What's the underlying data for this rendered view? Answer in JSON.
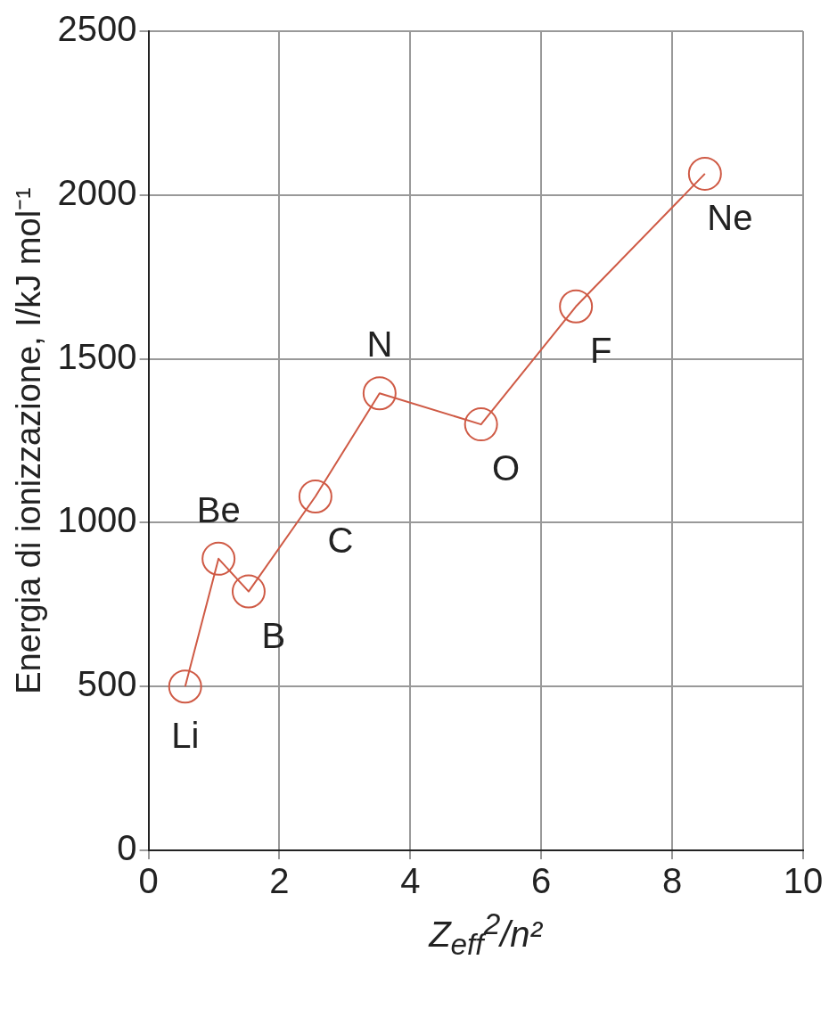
{
  "chart_data": {
    "type": "line",
    "xlabel": "Z$_{eff}$$^{2}$/n²",
    "ylabel": "Energia di ionizzazione, I/kJ mol⁻¹",
    "x": [
      0.56,
      1.07,
      1.53,
      2.55,
      3.53,
      5.08,
      6.53,
      8.5
    ],
    "series": [
      {
        "color": "#cf5a45",
        "values": [
          500,
          890,
          790,
          1080,
          1395,
          1300,
          1660,
          2065
        ]
      }
    ],
    "xlim": [
      0,
      10
    ],
    "xticks": [
      0,
      2,
      4,
      6,
      8,
      10
    ],
    "ylim": [
      0,
      2500
    ],
    "yticks": [
      0,
      500,
      1000,
      1500,
      2000,
      2500
    ],
    "grid": true,
    "legend": false,
    "marker": "circle",
    "line_style": "solid",
    "annotations": [
      {
        "text": "Li",
        "x": 0.56,
        "y": 500
      },
      {
        "text": "Be",
        "x": 1.07,
        "y": 890
      },
      {
        "text": "B",
        "x": 1.53,
        "y": 790
      },
      {
        "text": "C",
        "x": 2.55,
        "y": 1080
      },
      {
        "text": "N",
        "x": 3.53,
        "y": 1395
      },
      {
        "text": "O",
        "x": 5.08,
        "y": 1300
      },
      {
        "text": "F",
        "x": 6.53,
        "y": 1660
      },
      {
        "text": "Ne",
        "x": 8.5,
        "y": 2065
      }
    ]
  }
}
